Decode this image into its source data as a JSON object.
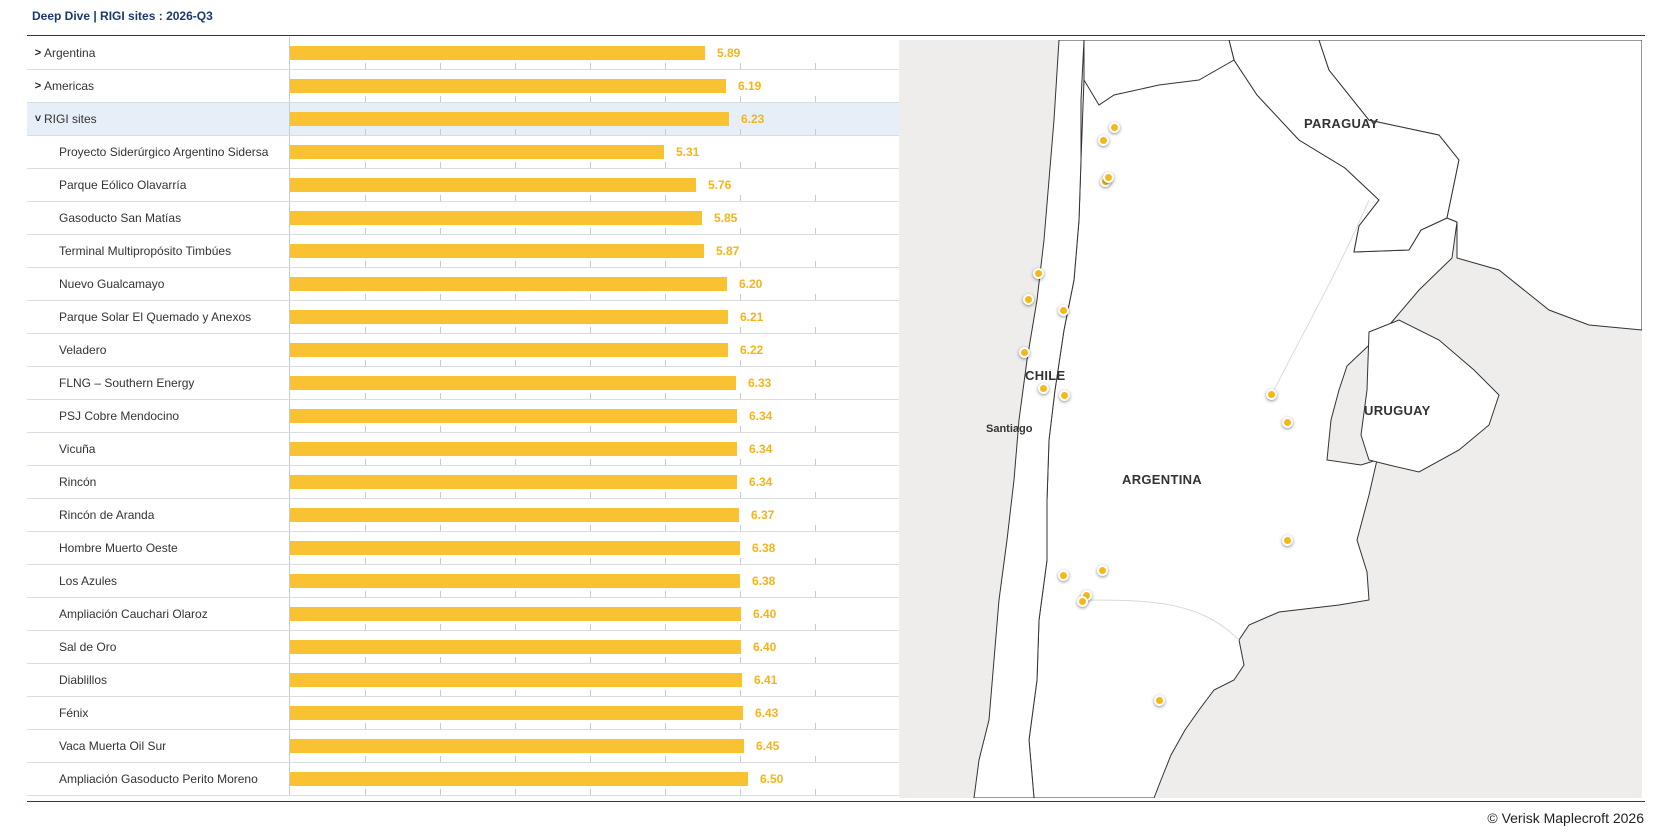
{
  "header": {
    "title": "Deep Dive | RIGI sites : 2026-Q3"
  },
  "footer": {
    "copyright": "© Verisk Maplecroft 2026"
  },
  "chart_data": {
    "type": "bar",
    "orientation": "horizontal",
    "categories": [
      "Argentina",
      "Americas",
      "RIGI sites",
      "Proyecto Siderúrgico Argentino Sidersa",
      "Parque Eólico Olavarría",
      "Gasoducto San Matías",
      "Terminal Multipropósito Timbúes",
      "Nuevo Gualcamayo",
      "Parque Solar El Quemado y Anexos",
      "Veladero",
      "FLNG – Southern Energy",
      "PSJ Cobre Mendocino",
      "Vicuña",
      "Rincón",
      "Rincón de Aranda",
      "Hombre Muerto Oeste",
      "Los Azules",
      "Ampliación Cauchari Olaroz",
      "Sal de Oro",
      "Diablillos",
      "Fénix",
      "Vaca Muerta Oil Sur",
      "Ampliación Gasoducto Perito Moreno"
    ],
    "values": [
      5.89,
      6.19,
      6.23,
      5.31,
      5.76,
      5.85,
      5.87,
      6.2,
      6.21,
      6.22,
      6.33,
      6.34,
      6.34,
      6.34,
      6.37,
      6.38,
      6.38,
      6.4,
      6.4,
      6.41,
      6.43,
      6.45,
      6.5
    ],
    "value_labels": [
      "5.89",
      "6.19",
      "6.23",
      "5.31",
      "5.76",
      "5.85",
      "5.87",
      "6.20",
      "6.21",
      "6.22",
      "6.33",
      "6.34",
      "6.34",
      "6.34",
      "6.37",
      "6.38",
      "6.38",
      "6.40",
      "6.40",
      "6.41",
      "6.43",
      "6.45",
      "6.50"
    ],
    "xlim": [
      0,
      10
    ],
    "grid": false,
    "bar_color": "#f9c232",
    "value_color": "#f4b41a"
  },
  "rows": [
    {
      "label": "Argentina",
      "level": 0,
      "expandable": true,
      "expanded": false,
      "selected": false
    },
    {
      "label": "Americas",
      "level": 0,
      "expandable": true,
      "expanded": false,
      "selected": false
    },
    {
      "label": "RIGI sites",
      "level": 0,
      "expandable": true,
      "expanded": true,
      "selected": true
    },
    {
      "label": "Proyecto Siderúrgico Argentino Sidersa",
      "level": 1
    },
    {
      "label": "Parque Eólico Olavarría",
      "level": 1
    },
    {
      "label": "Gasoducto San Matías",
      "level": 1
    },
    {
      "label": "Terminal Multipropósito Timbúes",
      "level": 1
    },
    {
      "label": "Nuevo Gualcamayo",
      "level": 1
    },
    {
      "label": "Parque Solar El Quemado y Anexos",
      "level": 1
    },
    {
      "label": "Veladero",
      "level": 1
    },
    {
      "label": "FLNG – Southern Energy",
      "level": 1
    },
    {
      "label": "PSJ Cobre Mendocino",
      "level": 1
    },
    {
      "label": "Vicuña",
      "level": 1
    },
    {
      "label": "Rincón",
      "level": 1
    },
    {
      "label": "Rincón de Aranda",
      "level": 1
    },
    {
      "label": "Hombre Muerto Oeste",
      "level": 1
    },
    {
      "label": "Los Azules",
      "level": 1
    },
    {
      "label": "Ampliación Cauchari Olaroz",
      "level": 1
    },
    {
      "label": "Sal de Oro",
      "level": 1
    },
    {
      "label": "Diablillos",
      "level": 1
    },
    {
      "label": "Fénix",
      "level": 1
    },
    {
      "label": "Vaca Muerta Oil Sur",
      "level": 1
    },
    {
      "label": "Ampliación Gasoducto Perito Moreno",
      "level": 1
    }
  ],
  "icons": {
    "collapsed": "chevron-right-icon",
    "expanded": "chevron-down-icon"
  },
  "map": {
    "labels": {
      "paraguay": "PARAGUAY",
      "chile": "CHILE",
      "uruguay": "URUGUAY",
      "argentina": "ARGENTINA",
      "santiago": "Santiago"
    },
    "site_marker_color": "#f6b818",
    "site_count": 21
  }
}
